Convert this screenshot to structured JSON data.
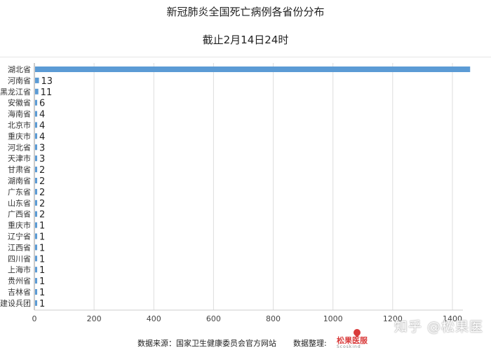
{
  "chart_data": {
    "type": "bar",
    "orientation": "horizontal",
    "title": "新冠肺炎全国死亡病例各省份分布",
    "subtitle": "截止2月14日24时",
    "categories": [
      "湖北省",
      "河南省",
      "黑龙江省",
      "安徽省",
      "海南省",
      "北京市",
      "重庆市",
      "河北省",
      "天津市",
      "甘肃省",
      "湖南省",
      "广东省",
      "山东省",
      "广西省",
      "重庆市",
      "辽宁省",
      "江西省",
      "四川省",
      "上海市",
      "贵州省",
      "吉林省",
      "建设兵团"
    ],
    "values": [
      1457,
      13,
      11,
      6,
      4,
      4,
      4,
      3,
      3,
      2,
      2,
      2,
      2,
      2,
      1,
      1,
      1,
      1,
      1,
      1,
      1,
      1
    ],
    "data_labels": [
      "",
      "13",
      "11",
      "6",
      "4",
      "4",
      "4",
      "3",
      "3",
      "2",
      "2",
      "2",
      "2",
      "2",
      "1",
      "1",
      "1",
      "1",
      "1",
      "1",
      "1",
      "1"
    ],
    "xlim": [
      0,
      1400
    ],
    "xticks": [
      0,
      200,
      400,
      600,
      800,
      1000,
      1200,
      1400
    ],
    "grid": "vertical",
    "bar_color": "#5b9bd5"
  },
  "footer": {
    "source": "数据来源：国家卫生健康委员会官方网站",
    "organizer": "数据整理:"
  },
  "logo": {
    "name": "松果医服",
    "en": "Scoskind"
  },
  "watermark": "知乎 @松果医"
}
